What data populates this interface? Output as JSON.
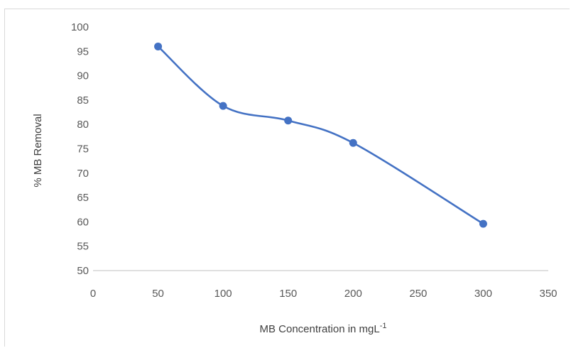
{
  "chart_data": {
    "type": "line",
    "smooth": true,
    "title": "",
    "xlabel": "MB Concentration in mgL",
    "xlabel_superscript": "-1",
    "ylabel": "% MB Removal",
    "xlim": [
      0,
      350
    ],
    "ylim": [
      50,
      100
    ],
    "x_ticks": [
      "0",
      "50",
      "100",
      "150",
      "200",
      "250",
      "300",
      "350"
    ],
    "y_ticks": [
      "50",
      "55",
      "60",
      "65",
      "70",
      "75",
      "80",
      "85",
      "90",
      "95",
      "100"
    ],
    "grid": false,
    "legend": "none",
    "series": [
      {
        "x": [
          50,
          100,
          150,
          200,
          300
        ],
        "y": [
          96,
          83.8,
          80.8,
          76.2,
          59.6
        ],
        "color": "#4472c4",
        "marker": "circle"
      }
    ]
  }
}
